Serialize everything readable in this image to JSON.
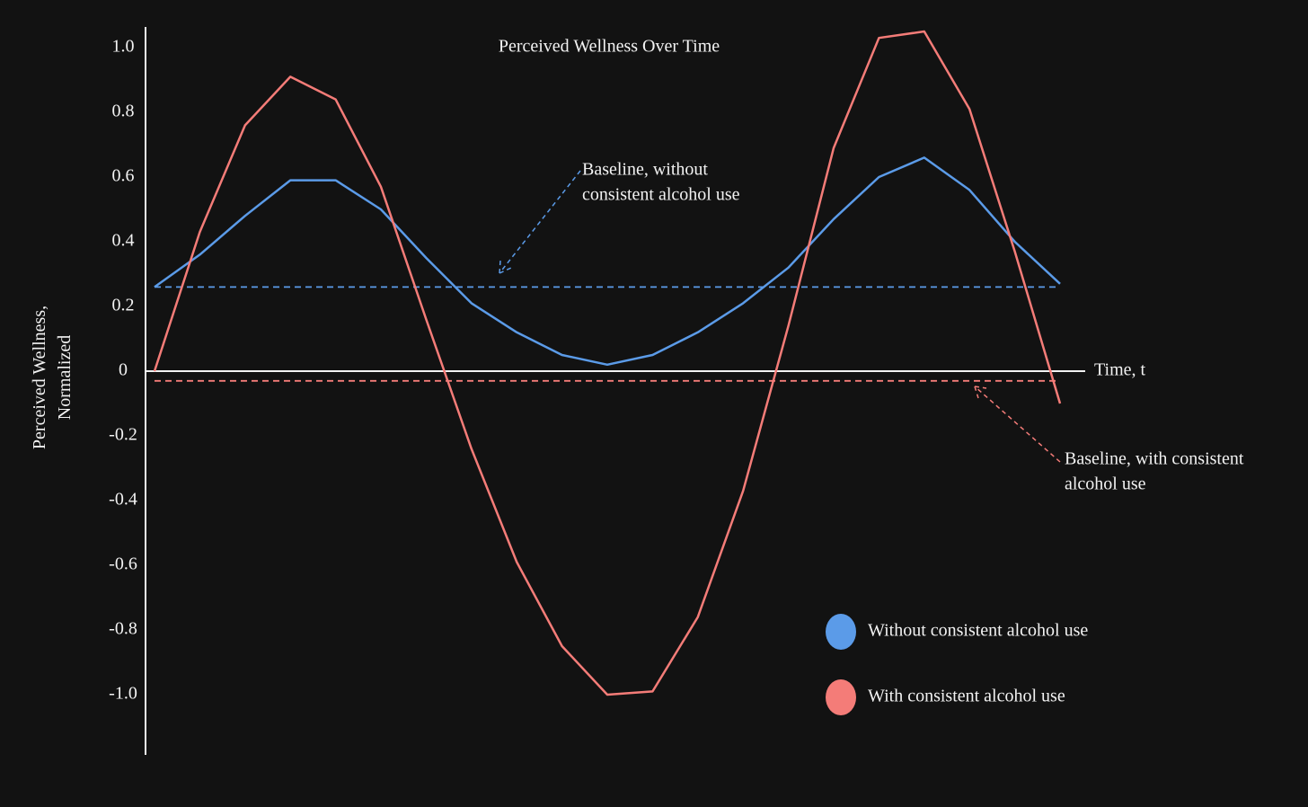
{
  "chart_data": {
    "type": "line",
    "title": "Perceived Wellness Over Time",
    "y_label": [
      "Perceived Wellness,",
      "Normalized"
    ],
    "x_label": "Time, t",
    "categories": [
      null,
      null,
      null,
      null,
      null,
      null,
      null,
      null,
      null,
      null,
      null,
      null,
      null,
      null,
      null,
      null,
      null,
      null,
      null,
      null,
      null
    ],
    "series": [
      {
        "name": "Without consistent alcohol use",
        "color": "#5b9be8",
        "values": [
          0.26,
          0.36,
          0.48,
          0.59,
          0.59,
          0.5,
          0.35,
          0.21,
          0.12,
          0.05,
          0.02,
          0.05,
          0.12,
          0.21,
          0.32,
          0.47,
          0.6,
          0.66,
          0.56,
          0.4,
          0.27
        ]
      },
      {
        "name": "With consistent alcohol use",
        "color": "#f47c78",
        "values": [
          0,
          0.43,
          0.76,
          0.91,
          0.84,
          0.57,
          0.16,
          -0.24,
          -0.59,
          -0.85,
          -1.0,
          -0.99,
          -0.76,
          -0.37,
          0.14,
          0.69,
          1.03,
          1.05,
          0.81,
          0.37,
          -0.1
        ]
      }
    ],
    "baselines": [
      {
        "value": 0.26,
        "color": "#5b9be8"
      },
      {
        "value": -0.03,
        "color": "#f47c78"
      }
    ],
    "annotations": [
      {
        "lines": [
          "Baseline, without",
          "consistent alcohol use"
        ],
        "color": "#5b9be8"
      },
      {
        "lines": [
          "Baseline, with consistent",
          "alcohol use"
        ],
        "color": "#f47c78"
      }
    ],
    "ylim": [
      -1.1,
      1.1
    ],
    "yticks": [
      {
        "value": 1,
        "label": "1.0"
      },
      0.8,
      0.6,
      0.4,
      0.2,
      0,
      -0.2,
      -0.4,
      -0.6,
      -0.8,
      {
        "value": -1,
        "label": "-1.0"
      }
    ],
    "grid": false,
    "legend": "lower right"
  }
}
